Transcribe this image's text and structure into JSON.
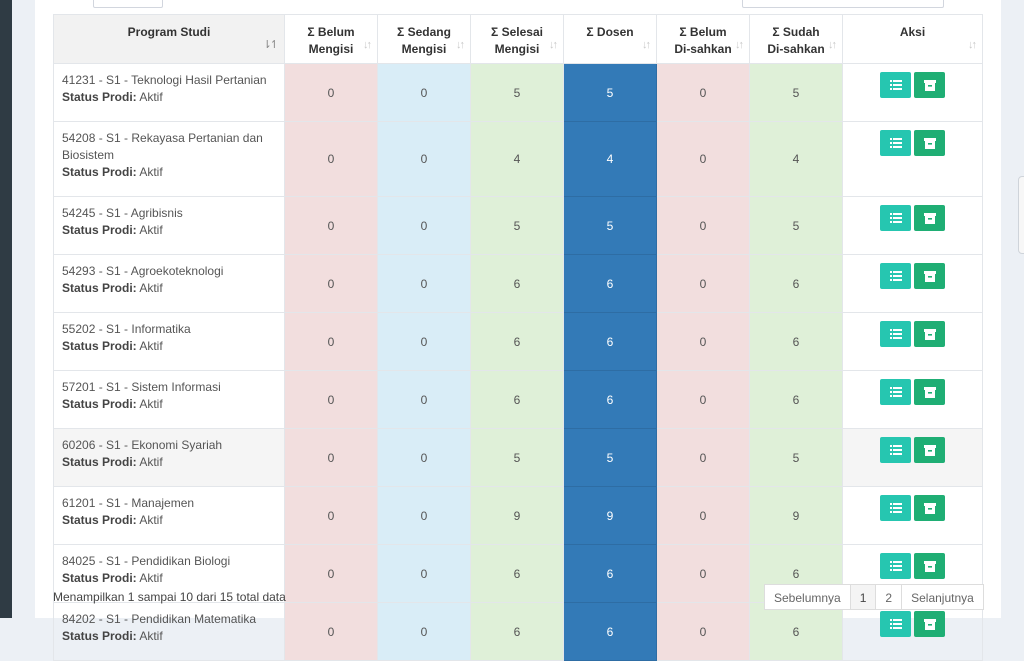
{
  "table": {
    "headers": {
      "program": "Program Studi",
      "belum_line1": "Σ Belum",
      "belum_line2": "Mengisi",
      "sedang_line1": "Σ Sedang",
      "sedang_line2": "Mengisi",
      "selesai_line1": "Σ Selesai",
      "selesai_line2": "Mengisi",
      "dosen": "Σ Dosen",
      "belumsah_line1": "Σ Belum",
      "belumsah_line2": "Di-sahkan",
      "sudah_line1": "Σ Sudah",
      "sudah_line2": "Di-sahkan",
      "aksi": "Aksi"
    },
    "status_label": "Status Prodi:",
    "rows": [
      {
        "name": "41231 - S1 - Teknologi Hasil Pertanian",
        "status": "Aktif",
        "belum": "0",
        "sedang": "0",
        "selesai": "5",
        "dosen": "5",
        "belum_sah": "0",
        "sudah_sah": "5"
      },
      {
        "name": "54208 - S1 - Rekayasa Pertanian dan Biosistem",
        "status": "Aktif",
        "belum": "0",
        "sedang": "0",
        "selesai": "4",
        "dosen": "4",
        "belum_sah": "0",
        "sudah_sah": "4"
      },
      {
        "name": "54245 - S1 - Agribisnis",
        "status": "Aktif",
        "belum": "0",
        "sedang": "0",
        "selesai": "5",
        "dosen": "5",
        "belum_sah": "0",
        "sudah_sah": "5"
      },
      {
        "name": "54293 - S1 - Agroekoteknologi",
        "status": "Aktif",
        "belum": "0",
        "sedang": "0",
        "selesai": "6",
        "dosen": "6",
        "belum_sah": "0",
        "sudah_sah": "6"
      },
      {
        "name": "55202 - S1 - Informatika",
        "status": "Aktif",
        "belum": "0",
        "sedang": "0",
        "selesai": "6",
        "dosen": "6",
        "belum_sah": "0",
        "sudah_sah": "6"
      },
      {
        "name": "57201 - S1 - Sistem Informasi",
        "status": "Aktif",
        "belum": "0",
        "sedang": "0",
        "selesai": "6",
        "dosen": "6",
        "belum_sah": "0",
        "sudah_sah": "6"
      },
      {
        "name": "60206 - S1 - Ekonomi Syariah",
        "status": "Aktif",
        "belum": "0",
        "sedang": "0",
        "selesai": "5",
        "dosen": "5",
        "belum_sah": "0",
        "sudah_sah": "5"
      },
      {
        "name": "61201 - S1 - Manajemen",
        "status": "Aktif",
        "belum": "0",
        "sedang": "0",
        "selesai": "9",
        "dosen": "9",
        "belum_sah": "0",
        "sudah_sah": "9"
      },
      {
        "name": "84025 - S1 - Pendidikan Biologi",
        "status": "Aktif",
        "belum": "0",
        "sedang": "0",
        "selesai": "6",
        "dosen": "6",
        "belum_sah": "0",
        "sudah_sah": "6"
      },
      {
        "name": "84202 - S1 - Pendidikan Matematika",
        "status": "Aktif",
        "belum": "0",
        "sedang": "0",
        "selesai": "6",
        "dosen": "6",
        "belum_sah": "0",
        "sudah_sah": "6"
      }
    ]
  },
  "footer": {
    "info": "Menampilkan 1 sampai 10 dari 15 total data",
    "prev": "Sebelumnya",
    "pages": [
      "1",
      "2"
    ],
    "next": "Selanjutnya"
  },
  "icons": {
    "detail_button": "list-icon",
    "archive_button": "archive-box-icon",
    "sort": "sort-arrows-icon"
  },
  "colors": {
    "belum": "#f2dede",
    "sedang": "#d9edf7",
    "selesai": "#dff0d8",
    "dosen": "#337ab7",
    "detail_button": "#26c6b0",
    "archive_button": "#1fae74"
  }
}
